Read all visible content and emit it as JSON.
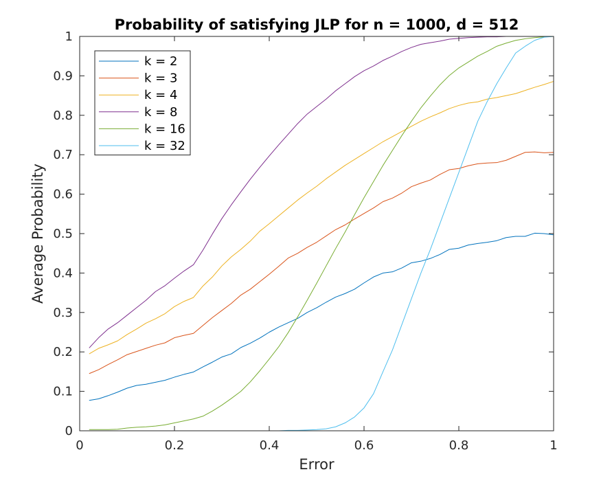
{
  "chart_data": {
    "type": "line",
    "title": "Probability of satisfying JLP for n = 1000, d = 512",
    "xlabel": "Error",
    "ylabel": "Average Probability",
    "xlim": [
      0,
      1
    ],
    "ylim": [
      0,
      1
    ],
    "xticks": [
      0,
      0.2,
      0.4,
      0.6,
      0.8,
      1
    ],
    "xtick_labels": [
      "0",
      "0.2",
      "0.4",
      "0.6",
      "0.8",
      "1"
    ],
    "yticks": [
      0,
      0.1,
      0.2,
      0.3,
      0.4,
      0.5,
      0.6,
      0.7,
      0.8,
      0.9,
      1
    ],
    "ytick_labels": [
      "0",
      "0.1",
      "0.2",
      "0.3",
      "0.4",
      "0.5",
      "0.6",
      "0.7",
      "0.8",
      "0.9",
      "1"
    ],
    "grid": false,
    "legend_position": "top-left",
    "x": [
      0.02,
      0.04,
      0.06,
      0.08,
      0.1,
      0.12,
      0.14,
      0.16,
      0.18,
      0.2,
      0.22,
      0.24,
      0.26,
      0.28,
      0.3,
      0.32,
      0.34,
      0.36,
      0.38,
      0.4,
      0.42,
      0.44,
      0.46,
      0.48,
      0.5,
      0.52,
      0.54,
      0.56,
      0.58,
      0.6,
      0.62,
      0.64,
      0.66,
      0.68,
      0.7,
      0.72,
      0.74,
      0.76,
      0.78,
      0.8,
      0.82,
      0.84,
      0.86,
      0.88,
      0.9,
      0.92,
      0.94,
      0.96,
      0.98,
      1.0
    ],
    "series": [
      {
        "name": "k = 2",
        "color": "#0072BD",
        "values": [
          0.077,
          0.081,
          0.089,
          0.098,
          0.108,
          0.115,
          0.118,
          0.123,
          0.128,
          0.136,
          0.143,
          0.149,
          0.162,
          0.174,
          0.187,
          0.195,
          0.211,
          0.222,
          0.235,
          0.25,
          0.263,
          0.274,
          0.285,
          0.3,
          0.312,
          0.326,
          0.339,
          0.348,
          0.359,
          0.375,
          0.39,
          0.4,
          0.403,
          0.413,
          0.426,
          0.43,
          0.437,
          0.447,
          0.46,
          0.463,
          0.471,
          0.475,
          0.478,
          0.482,
          0.49,
          0.493,
          0.493,
          0.501,
          0.5,
          0.497
        ]
      },
      {
        "name": "k = 3",
        "color": "#D95319",
        "values": [
          0.145,
          0.155,
          0.168,
          0.18,
          0.193,
          0.201,
          0.209,
          0.217,
          0.223,
          0.236,
          0.242,
          0.247,
          0.267,
          0.287,
          0.305,
          0.323,
          0.344,
          0.359,
          0.378,
          0.397,
          0.417,
          0.438,
          0.45,
          0.465,
          0.478,
          0.494,
          0.51,
          0.522,
          0.537,
          0.551,
          0.565,
          0.581,
          0.59,
          0.603,
          0.619,
          0.628,
          0.636,
          0.65,
          0.662,
          0.665,
          0.672,
          0.677,
          0.679,
          0.68,
          0.686,
          0.696,
          0.706,
          0.707,
          0.705,
          0.706
        ]
      },
      {
        "name": "k = 4",
        "color": "#EDB120",
        "values": [
          0.195,
          0.209,
          0.218,
          0.228,
          0.244,
          0.258,
          0.273,
          0.284,
          0.297,
          0.315,
          0.328,
          0.338,
          0.367,
          0.39,
          0.418,
          0.441,
          0.46,
          0.481,
          0.506,
          0.525,
          0.545,
          0.565,
          0.585,
          0.603,
          0.62,
          0.639,
          0.656,
          0.673,
          0.688,
          0.703,
          0.718,
          0.733,
          0.746,
          0.759,
          0.772,
          0.785,
          0.796,
          0.806,
          0.817,
          0.825,
          0.831,
          0.834,
          0.841,
          0.845,
          0.85,
          0.855,
          0.863,
          0.871,
          0.878,
          0.886
        ]
      },
      {
        "name": "k = 8",
        "color": "#7E2F8E",
        "values": [
          0.21,
          0.236,
          0.258,
          0.274,
          0.293,
          0.312,
          0.331,
          0.353,
          0.368,
          0.387,
          0.405,
          0.421,
          0.458,
          0.499,
          0.538,
          0.573,
          0.606,
          0.638,
          0.668,
          0.697,
          0.725,
          0.752,
          0.779,
          0.803,
          0.822,
          0.841,
          0.862,
          0.88,
          0.898,
          0.913,
          0.925,
          0.939,
          0.95,
          0.962,
          0.972,
          0.98,
          0.984,
          0.988,
          0.993,
          0.995,
          0.997,
          0.998,
          0.999,
          0.999,
          1.0,
          1.0,
          1.0,
          1.0,
          1.0,
          1.0
        ]
      },
      {
        "name": "k = 16",
        "color": "#77AC30",
        "values": [
          0.003,
          0.003,
          0.003,
          0.004,
          0.007,
          0.009,
          0.01,
          0.012,
          0.015,
          0.02,
          0.025,
          0.03,
          0.037,
          0.05,
          0.065,
          0.082,
          0.1,
          0.124,
          0.152,
          0.182,
          0.213,
          0.249,
          0.289,
          0.331,
          0.374,
          0.418,
          0.462,
          0.504,
          0.548,
          0.591,
          0.632,
          0.673,
          0.711,
          0.749,
          0.785,
          0.819,
          0.849,
          0.877,
          0.901,
          0.92,
          0.935,
          0.95,
          0.962,
          0.975,
          0.983,
          0.99,
          0.994,
          0.997,
          0.999,
          1.0
        ]
      },
      {
        "name": "k = 32",
        "color": "#4DBEEE",
        "values": [
          0.0,
          0.0,
          0.0,
          0.0,
          0.0,
          0.0,
          0.0,
          0.0,
          0.0,
          0.0,
          0.0,
          0.0,
          0.0,
          0.0,
          0.0,
          0.0,
          0.0,
          0.0,
          0.0,
          0.0,
          0.0,
          0.001,
          0.001,
          0.002,
          0.003,
          0.005,
          0.01,
          0.02,
          0.035,
          0.058,
          0.094,
          0.15,
          0.205,
          0.27,
          0.335,
          0.4,
          0.46,
          0.525,
          0.59,
          0.655,
          0.72,
          0.785,
          0.835,
          0.88,
          0.92,
          0.958,
          0.975,
          0.99,
          0.998,
          1.0
        ]
      }
    ]
  }
}
